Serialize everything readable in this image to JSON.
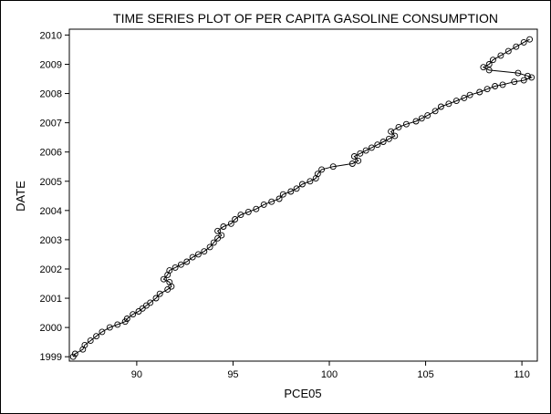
{
  "chart_data": {
    "type": "line",
    "title": "TIME SERIES PLOT OF PER CAPITA GASOLINE CONSUMPTION",
    "xlabel": "PCE05",
    "ylabel": "DATE",
    "xlim": [
      86.5,
      110.8
    ],
    "ylim": [
      1998.85,
      2010.2
    ],
    "x_ticks": [
      90,
      95,
      100,
      105,
      110
    ],
    "y_ticks": [
      1999,
      2000,
      2001,
      2002,
      2003,
      2004,
      2005,
      2006,
      2007,
      2008,
      2009,
      2010
    ],
    "marker": "open-circle",
    "grid": false,
    "series": [
      {
        "points": [
          [
            86.7,
            1999.0
          ],
          [
            86.8,
            1999.1
          ],
          [
            87.2,
            1999.25
          ],
          [
            87.3,
            1999.4
          ],
          [
            87.6,
            1999.55
          ],
          [
            87.9,
            1999.7
          ],
          [
            88.2,
            1999.85
          ],
          [
            88.6,
            2000.0
          ],
          [
            89.0,
            2000.1
          ],
          [
            89.4,
            2000.2
          ],
          [
            89.5,
            2000.3
          ],
          [
            89.8,
            2000.45
          ],
          [
            90.1,
            2000.55
          ],
          [
            90.3,
            2000.65
          ],
          [
            90.5,
            2000.75
          ],
          [
            90.7,
            2000.85
          ],
          [
            91.0,
            2001.0
          ],
          [
            91.2,
            2001.15
          ],
          [
            91.6,
            2001.3
          ],
          [
            91.8,
            2001.4
          ],
          [
            91.7,
            2001.55
          ],
          [
            91.4,
            2001.65
          ],
          [
            91.6,
            2001.8
          ],
          [
            91.7,
            2001.95
          ],
          [
            92.0,
            2002.05
          ],
          [
            92.3,
            2002.15
          ],
          [
            92.6,
            2002.25
          ],
          [
            92.9,
            2002.4
          ],
          [
            93.2,
            2002.5
          ],
          [
            93.5,
            2002.6
          ],
          [
            93.8,
            2002.75
          ],
          [
            94.0,
            2002.9
          ],
          [
            94.2,
            2003.05
          ],
          [
            94.4,
            2003.15
          ],
          [
            94.2,
            2003.3
          ],
          [
            94.5,
            2003.45
          ],
          [
            94.9,
            2003.55
          ],
          [
            95.1,
            2003.7
          ],
          [
            95.4,
            2003.85
          ],
          [
            95.8,
            2003.95
          ],
          [
            96.2,
            2004.05
          ],
          [
            96.6,
            2004.2
          ],
          [
            97.0,
            2004.3
          ],
          [
            97.4,
            2004.4
          ],
          [
            97.6,
            2004.55
          ],
          [
            98.0,
            2004.65
          ],
          [
            98.3,
            2004.75
          ],
          [
            98.6,
            2004.9
          ],
          [
            99.0,
            2005.0
          ],
          [
            99.3,
            2005.1
          ],
          [
            99.4,
            2005.25
          ],
          [
            99.6,
            2005.4
          ],
          [
            100.2,
            2005.5
          ],
          [
            101.2,
            2005.6
          ],
          [
            101.5,
            2005.7
          ],
          [
            101.3,
            2005.85
          ],
          [
            101.6,
            2005.95
          ],
          [
            101.9,
            2006.05
          ],
          [
            102.2,
            2006.15
          ],
          [
            102.5,
            2006.25
          ],
          [
            102.8,
            2006.35
          ],
          [
            103.1,
            2006.45
          ],
          [
            103.4,
            2006.55
          ],
          [
            103.2,
            2006.7
          ],
          [
            103.6,
            2006.85
          ],
          [
            104.0,
            2006.95
          ],
          [
            104.5,
            2007.05
          ],
          [
            104.8,
            2007.15
          ],
          [
            105.1,
            2007.25
          ],
          [
            105.5,
            2007.4
          ],
          [
            105.8,
            2007.55
          ],
          [
            106.2,
            2007.65
          ],
          [
            106.6,
            2007.75
          ],
          [
            107.0,
            2007.85
          ],
          [
            107.3,
            2007.95
          ],
          [
            107.8,
            2008.05
          ],
          [
            108.2,
            2008.15
          ],
          [
            108.6,
            2008.25
          ],
          [
            109.0,
            2008.3
          ],
          [
            109.6,
            2008.4
          ],
          [
            110.1,
            2008.45
          ],
          [
            110.5,
            2008.55
          ],
          [
            110.3,
            2008.6
          ],
          [
            109.8,
            2008.7
          ],
          [
            108.3,
            2008.8
          ],
          [
            108.0,
            2008.9
          ],
          [
            108.3,
            2009.0
          ],
          [
            108.5,
            2009.15
          ],
          [
            108.9,
            2009.3
          ],
          [
            109.3,
            2009.45
          ],
          [
            109.7,
            2009.6
          ],
          [
            110.1,
            2009.75
          ],
          [
            110.4,
            2009.85
          ]
        ]
      }
    ]
  }
}
